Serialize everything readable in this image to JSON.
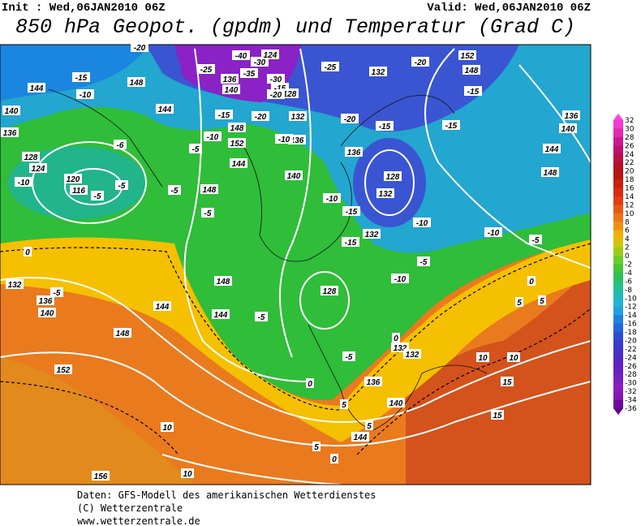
{
  "header": {
    "init": "Init : Wed,06JAN2010 06Z",
    "valid": "Valid: Wed,06JAN2010 06Z",
    "title": "850 hPa Geopot. (gpdm) und Temperatur (Grad C)"
  },
  "legend": {
    "labels": [
      "32",
      "30",
      "28",
      "26",
      "24",
      "22",
      "20",
      "18",
      "16",
      "14",
      "12",
      "10",
      "8",
      "6",
      "4",
      "2",
      "0",
      "-2",
      "-4",
      "-6",
      "-8",
      "-10",
      "-12",
      "-14",
      "-16",
      "-18",
      "-20",
      "-22",
      "-24",
      "-26",
      "-28",
      "-30",
      "-32",
      "-34",
      "-36"
    ]
  },
  "contour_labels": [
    "144",
    "140",
    "136",
    "128",
    "124",
    "120",
    "116",
    "-10",
    "-5",
    "-5",
    "-6",
    "-10",
    "-15",
    "148",
    "144",
    "-20",
    "-25",
    "-40",
    "-30",
    "124",
    "-35",
    "136",
    "140",
    "-30",
    "-15",
    "128",
    "-20",
    "-20",
    "-15",
    "148",
    "152",
    "-10",
    "-5",
    "144",
    "148",
    "-5",
    "-5",
    "132",
    "136",
    "-10",
    "140",
    "-25",
    "132",
    "-20",
    "152",
    "148",
    "-15",
    "-20",
    "-15",
    "-15",
    "136",
    "128",
    "132",
    "-10",
    "-15",
    "-15",
    "132",
    "-10",
    "-10",
    "-5",
    "148",
    "144",
    "140",
    "136",
    "-5",
    "-10",
    "128",
    "148",
    "144",
    "144",
    "148",
    "152",
    "132",
    "136",
    "140",
    "-5",
    "0",
    "-5",
    "-5",
    "0",
    "132",
    "132",
    "136",
    "140",
    "0",
    "5",
    "5",
    "144",
    "10",
    "10",
    "15",
    "15",
    "10",
    "10",
    "156",
    "5",
    "5",
    "0",
    "5",
    "0"
  ],
  "footer": {
    "lines": [
      "Daten: GFS-Modell des amerikanischen Wetterdienstes",
      "(C) Wetterzentrale",
      "www.wetterzentrale.de"
    ]
  }
}
